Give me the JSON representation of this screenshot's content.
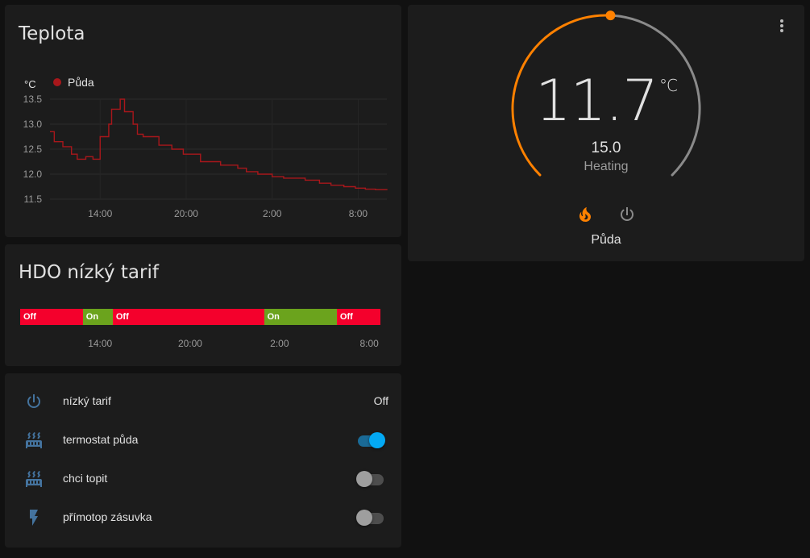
{
  "teplota": {
    "title": "Teplota",
    "unit": "°C",
    "legend": "Půda",
    "series_color": "#a8171b"
  },
  "chart_data": {
    "type": "line",
    "title": "Teplota",
    "ylabel": "°C",
    "ylim": [
      11.5,
      13.5
    ],
    "yticks": [
      "13.5",
      "13.0",
      "12.5",
      "12.0",
      "11.5"
    ],
    "xticks": [
      "14:00",
      "20:00",
      "2:00",
      "8:00"
    ],
    "x_range_hours": [
      10.5,
      34.0
    ],
    "series": [
      {
        "name": "Půda",
        "step": true,
        "x": [
          10.5,
          10.8,
          11.4,
          12.0,
          12.4,
          13.0,
          13.5,
          14.0,
          14.6,
          14.8,
          15.4,
          15.7,
          16.3,
          16.6,
          17.0,
          18.1,
          19.0,
          19.8,
          21.0,
          22.4,
          23.6,
          24.2,
          25.0,
          26.0,
          26.8,
          27.4,
          28.3,
          29.3,
          30.1,
          31.0,
          31.8,
          32.5,
          33.2,
          34.0
        ],
        "y": [
          12.85,
          12.65,
          12.55,
          12.4,
          12.3,
          12.35,
          12.3,
          12.75,
          13.0,
          13.3,
          13.5,
          13.25,
          13.0,
          12.8,
          12.75,
          12.58,
          12.5,
          12.4,
          12.25,
          12.18,
          12.12,
          12.05,
          12.0,
          11.95,
          11.92,
          11.92,
          11.88,
          11.82,
          11.78,
          11.75,
          11.72,
          11.7,
          11.69,
          11.68
        ]
      }
    ]
  },
  "hdo": {
    "title": "HDO nízký tarif",
    "segments": [
      {
        "label": "Off",
        "start": 0.0,
        "end": 0.174,
        "color": "#f4002c"
      },
      {
        "label": "On",
        "start": 0.174,
        "end": 0.257,
        "color": "#6ba31d"
      },
      {
        "label": "Off",
        "start": 0.257,
        "end": 0.677,
        "color": "#f4002c"
      },
      {
        "label": "On",
        "start": 0.677,
        "end": 0.879,
        "color": "#6ba31d"
      },
      {
        "label": "Off",
        "start": 0.879,
        "end": 1.0,
        "color": "#f4002c"
      }
    ],
    "ticks": [
      {
        "label": "14:00",
        "pos": 0.222
      },
      {
        "label": "20:00",
        "pos": 0.472
      },
      {
        "label": "2:00",
        "pos": 0.72
      },
      {
        "label": "8:00",
        "pos": 0.969
      }
    ]
  },
  "entities": [
    {
      "icon": "power-icon",
      "label": "nízký tarif",
      "state": "Off",
      "type": "text"
    },
    {
      "icon": "radiator-icon",
      "label": "termostat půda",
      "state": "on",
      "type": "toggle"
    },
    {
      "icon": "radiator-icon",
      "label": "chci topit",
      "state": "off",
      "type": "toggle"
    },
    {
      "icon": "flash-icon",
      "label": "přímotop zásuvka",
      "state": "off",
      "type": "toggle"
    }
  ],
  "thermostat": {
    "current_temperature": "11.7",
    "unit": "°C",
    "target_temperature": "15.0",
    "hvac_action": "Heating",
    "name": "Půda",
    "target_fraction": 0.51,
    "modes": [
      "fire-icon",
      "power-icon"
    ],
    "colors": {
      "heat": "#ff8100",
      "inactive": "#8a8a8a",
      "icon": "#44739e",
      "toggle_on": "#03a9f4"
    }
  }
}
